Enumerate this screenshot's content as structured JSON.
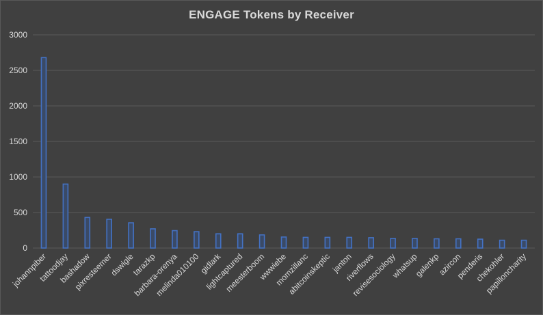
{
  "chart_data": {
    "type": "bar",
    "title": "ENGAGE Tokens by Receiver",
    "xlabel": "",
    "ylabel": "",
    "ylim": [
      0,
      3000
    ],
    "yticks": [
      0,
      500,
      1000,
      1500,
      2000,
      2500,
      3000
    ],
    "grid": true,
    "legend": "none",
    "bar_color": "#4472c4",
    "background_color": "#404040",
    "categories": [
      "johannpiber",
      "tattoodjay",
      "bashadow",
      "pixresteemer",
      "dswigle",
      "tarazkp",
      "barbara-orenya",
      "melinda010100",
      "gidlark",
      "lightcaptured",
      "meesterboom",
      "wwwiebe",
      "momzillanc",
      "abitcoinskeptic",
      "janton",
      "riverflows",
      "revisesociology",
      "whatsup",
      "galenkp",
      "azircon",
      "penderis",
      "chekohler",
      "papilloncharity"
    ],
    "values": [
      2680,
      900,
      430,
      405,
      355,
      270,
      245,
      230,
      200,
      200,
      185,
      155,
      150,
      150,
      150,
      145,
      135,
      135,
      130,
      130,
      125,
      110,
      110
    ]
  }
}
